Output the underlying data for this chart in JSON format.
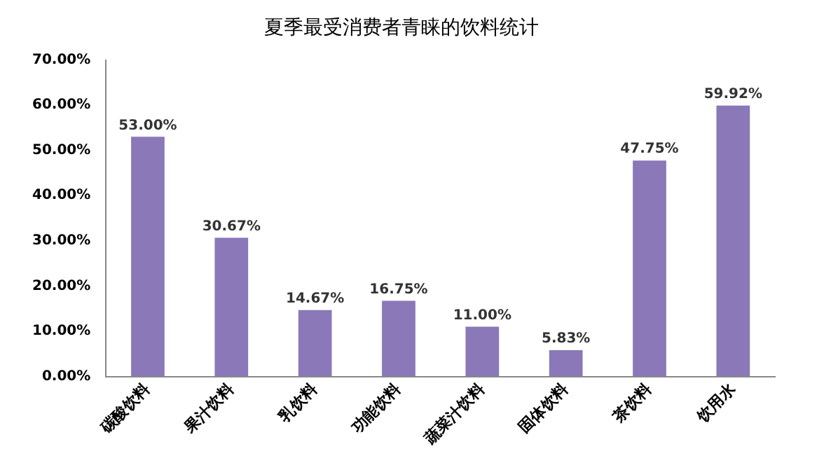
{
  "chart_data": {
    "type": "bar",
    "title": "夏季最受消费者青睐的饮料统计",
    "categories": [
      "碳酸饮料",
      "果汁饮料",
      "乳饮料",
      "功能饮料",
      "蔬菜汁饮料",
      "固体饮料",
      "茶饮料",
      "饮用水"
    ],
    "values": [
      53.0,
      30.67,
      14.67,
      16.75,
      11.0,
      5.83,
      47.75,
      59.92
    ],
    "value_labels": [
      "53.00%",
      "30.67%",
      "14.67%",
      "16.75%",
      "11.00%",
      "5.83%",
      "47.75%",
      "59.92%"
    ],
    "color": "#8a78b8",
    "ylim": [
      0,
      70
    ],
    "yticks": [
      {
        "value": 0,
        "label": "0.00%"
      },
      {
        "value": 10,
        "label": "10.00%"
      },
      {
        "value": 20,
        "label": "20.00%"
      },
      {
        "value": 30,
        "label": "30.00%"
      },
      {
        "value": 40,
        "label": "40.00%"
      },
      {
        "value": 50,
        "label": "50.00%"
      },
      {
        "value": 60,
        "label": "60.00%"
      },
      {
        "value": 70,
        "label": "70.00%"
      }
    ],
    "grid": false,
    "legend": false
  }
}
